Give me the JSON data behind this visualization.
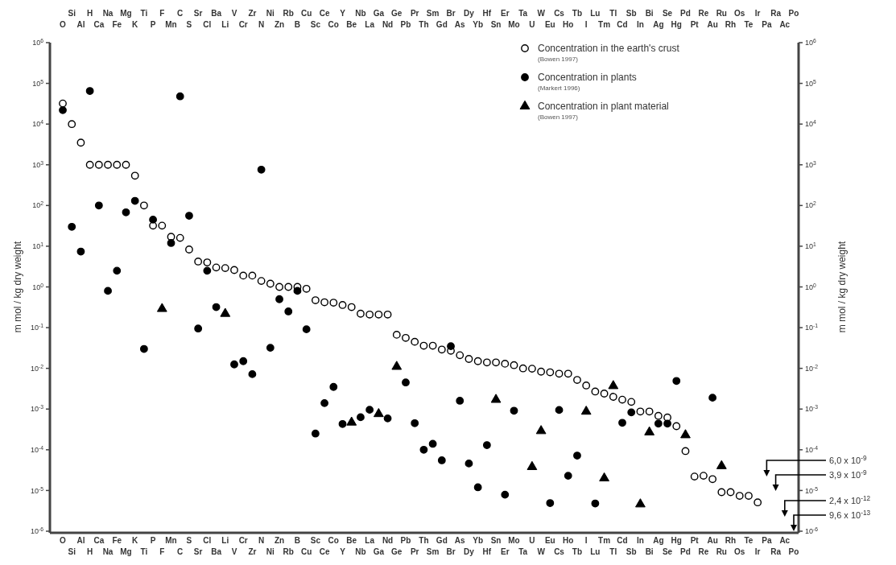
{
  "chart_data": {
    "type": "scatter",
    "ylabel": "m mol / kg dry weight",
    "y2label": "m mol / kg dry weight",
    "log": true,
    "legend": "top right",
    "categories": [
      "O",
      "Si",
      "Al",
      "H",
      "Ca",
      "Na",
      "Fe",
      "Mg",
      "K",
      "Ti",
      "P",
      "F",
      "Mn",
      "C",
      "S",
      "Sr",
      "Cl",
      "Ba",
      "Li",
      "V",
      "Cr",
      "Zr",
      "N",
      "Ni",
      "Zn",
      "Rb",
      "B",
      "Cu",
      "Sc",
      "Ce",
      "Co",
      "Y",
      "Be",
      "Nb",
      "La",
      "Ga",
      "Nd",
      "Ge",
      "Pb",
      "Pr",
      "Th",
      "Sm",
      "Gd",
      "Br",
      "As",
      "Dy",
      "Yb",
      "Hf",
      "Sn",
      "Er",
      "Mo",
      "Ta",
      "U",
      "W",
      "Eu",
      "Cs",
      "Ho",
      "Tb",
      "I",
      "Lu",
      "Tm",
      "Tl",
      "Cd",
      "Sb",
      "In",
      "Bi",
      "Ag",
      "Se",
      "Hg",
      "Pd",
      "Pt",
      "Re",
      "Au",
      "Ru",
      "Rh",
      "Os",
      "Te",
      "Ir",
      "Pa",
      "Ra",
      "Ac",
      "Po"
    ],
    "ylim": [
      1e-06,
      1000000.0
    ],
    "yticks": [
      {
        "value": 1000000.0,
        "label": "10$^{6}$"
      },
      {
        "value": 100000.0,
        "label": "10$^{5}$"
      },
      {
        "value": 10000.0,
        "label": "10$^{4}$"
      },
      {
        "value": 1000.0,
        "label": "10$^{3}$"
      },
      {
        "value": 100.0,
        "label": "10$^{2}$"
      },
      {
        "value": 10.0,
        "label": "10$^{1}$"
      },
      {
        "value": 1,
        "label": "10$^{0}$"
      },
      {
        "value": 0.1,
        "label": "10$^{-1}$"
      },
      {
        "value": 0.01,
        "label": "10$^{-2}$"
      },
      {
        "value": 0.001,
        "label": "10$^{-3}$"
      },
      {
        "value": 0.0001,
        "label": "10$^{-4}$"
      },
      {
        "value": 1e-05,
        "label": "10$^{-5}$"
      },
      {
        "value": 1e-06,
        "label": "10$^{-6}$"
      }
    ],
    "series": [
      {
        "name": "Concentration in the earth's crust",
        "color": "#ffffff",
        "marker": "circle",
        "values": [
          32000,
          10000,
          3500,
          1000,
          1000,
          1000,
          1000,
          1000,
          540,
          100,
          32,
          32,
          17,
          16,
          8.3,
          4.2,
          4,
          3,
          2.9,
          2.6,
          1.9,
          1.9,
          1.4,
          1.2,
          1.0,
          1.0,
          1.0,
          0.9,
          0.47,
          0.42,
          0.41,
          0.36,
          0.32,
          0.22,
          0.21,
          0.21,
          0.21,
          0.067,
          0.056,
          0.045,
          0.036,
          0.036,
          0.029,
          0.027,
          0.021,
          0.017,
          0.015,
          0.014,
          0.014,
          0.013,
          0.012,
          0.01,
          0.0098,
          0.0083,
          0.008,
          0.0074,
          0.0074,
          0.0052,
          0.0038,
          0.0027,
          0.0024,
          0.002,
          0.0017,
          0.0015,
          0.00087,
          0.00087,
          0.00068,
          0.00062,
          0.00038,
          9.3e-05,
          2.2e-05,
          2.3e-05,
          1.9e-05,
          9.1e-06,
          9.1e-06,
          7.4e-06,
          7.4e-06,
          5.1e-06,
          null,
          null,
          null,
          null
        ]
      },
      {
        "name": "Concentration in plants",
        "color": "#000000",
        "marker": "circle",
        "values": [
          22000,
          30,
          7.4,
          65000,
          100,
          0.8,
          2.5,
          68,
          130,
          0.03,
          45,
          null,
          12,
          48000,
          56,
          0.095,
          2.5,
          0.32,
          null,
          0.0125,
          0.015,
          0.0072,
          760,
          0.032,
          0.5,
          0.25,
          0.8,
          0.091,
          0.00025,
          0.0014,
          0.0035,
          0.00043,
          null,
          0.00063,
          0.00096,
          null,
          0.00059,
          null,
          0.0045,
          0.00045,
          0.0001,
          0.00014,
          5.5e-05,
          0.035,
          0.0016,
          4.6e-05,
          1.2e-05,
          0.00013,
          null,
          7.9e-06,
          0.00091,
          null,
          null,
          null,
          4.9e-06,
          0.00095,
          2.3e-05,
          7.2e-05,
          null,
          4.8e-06,
          null,
          null,
          0.00046,
          0.00083,
          null,
          null,
          0.00044,
          0.00044,
          0.0049,
          null,
          null,
          null,
          0.0019,
          null,
          null,
          null,
          null,
          null,
          null,
          null,
          null,
          null
        ]
      },
      {
        "name": "Concentration in plant material",
        "color": "#000000",
        "marker": "triangle",
        "values": [
          null,
          null,
          null,
          null,
          null,
          null,
          null,
          null,
          null,
          null,
          null,
          0.29,
          null,
          null,
          null,
          null,
          null,
          null,
          0.22,
          null,
          null,
          null,
          null,
          null,
          null,
          null,
          null,
          null,
          null,
          null,
          null,
          null,
          0.00047,
          null,
          null,
          0.00076,
          null,
          0.011,
          null,
          null,
          null,
          null,
          null,
          null,
          null,
          null,
          null,
          null,
          0.0017,
          null,
          null,
          null,
          3.8e-05,
          0.00029,
          null,
          null,
          null,
          null,
          0.00087,
          null,
          2e-05,
          0.0037,
          null,
          null,
          4.6e-06,
          0.00027,
          null,
          null,
          null,
          0.00023,
          null,
          null,
          null,
          4e-05,
          null,
          null,
          null,
          null,
          null,
          null,
          null,
          null
        ]
      }
    ],
    "annotations": [
      "(Bowen 1997)",
      "(Markert 1996)",
      "(Bowen 1997)",
      "6,0 x 10$^{-9}$",
      "3,9 x 10$^{-9}$",
      "2,4 x 10$^{-12}$",
      "9,6 x 10$^{-13}$"
    ]
  }
}
